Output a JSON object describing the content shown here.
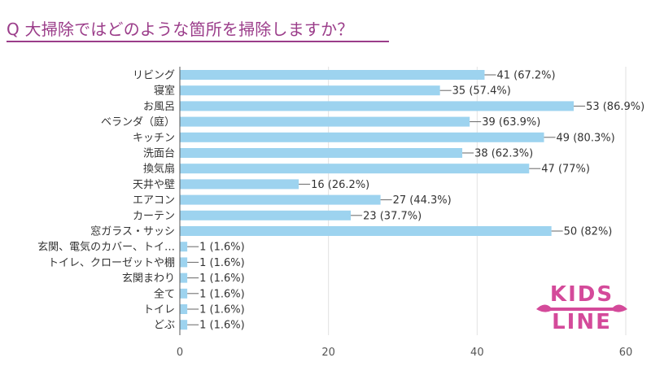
{
  "header": {
    "title": "Q 大掃除ではどのような箇所を掃除しますか？"
  },
  "logo": {
    "line1": "KIDS",
    "line2": "LINE",
    "color": "#d44a9a"
  },
  "colors": {
    "bar": "#9dd3ef",
    "title": "#9b3d8a",
    "grid": "#e2e2e2",
    "axis": "#555555"
  },
  "chart_data": {
    "type": "bar",
    "orientation": "horizontal",
    "title": "",
    "xlabel": "",
    "ylabel": "",
    "xlim": [
      0,
      60
    ],
    "xticks": [
      0,
      20,
      40,
      60
    ],
    "grid": true,
    "categories": [
      "リビング",
      "寝室",
      "お風呂",
      "ベランダ（庭）",
      "キッチン",
      "洗面台",
      "換気扇",
      "天井や壁",
      "エアコン",
      "カーテン",
      "窓ガラス・サッシ",
      "玄関、電気のカバー、トイ…",
      "トイレ、クローゼットや棚",
      "玄関まわり",
      "全て",
      "トイレ",
      "どぶ"
    ],
    "values": [
      41,
      35,
      53,
      39,
      49,
      38,
      47,
      16,
      27,
      23,
      50,
      1,
      1,
      1,
      1,
      1,
      1
    ],
    "data_labels": [
      "41 (67.2%)",
      "35 (57.4%)",
      "53 (86.9%)",
      "39 (63.9%)",
      "49 (80.3%)",
      "38 (62.3%)",
      "47 (77%)",
      "16 (26.2%)",
      "27 (44.3%)",
      "23 (37.7%)",
      "50 (82%)",
      "1 (1.6%)",
      "1 (1.6%)",
      "1 (1.6%)",
      "1 (1.6%)",
      "1 (1.6%)",
      "1 (1.6%)"
    ]
  }
}
